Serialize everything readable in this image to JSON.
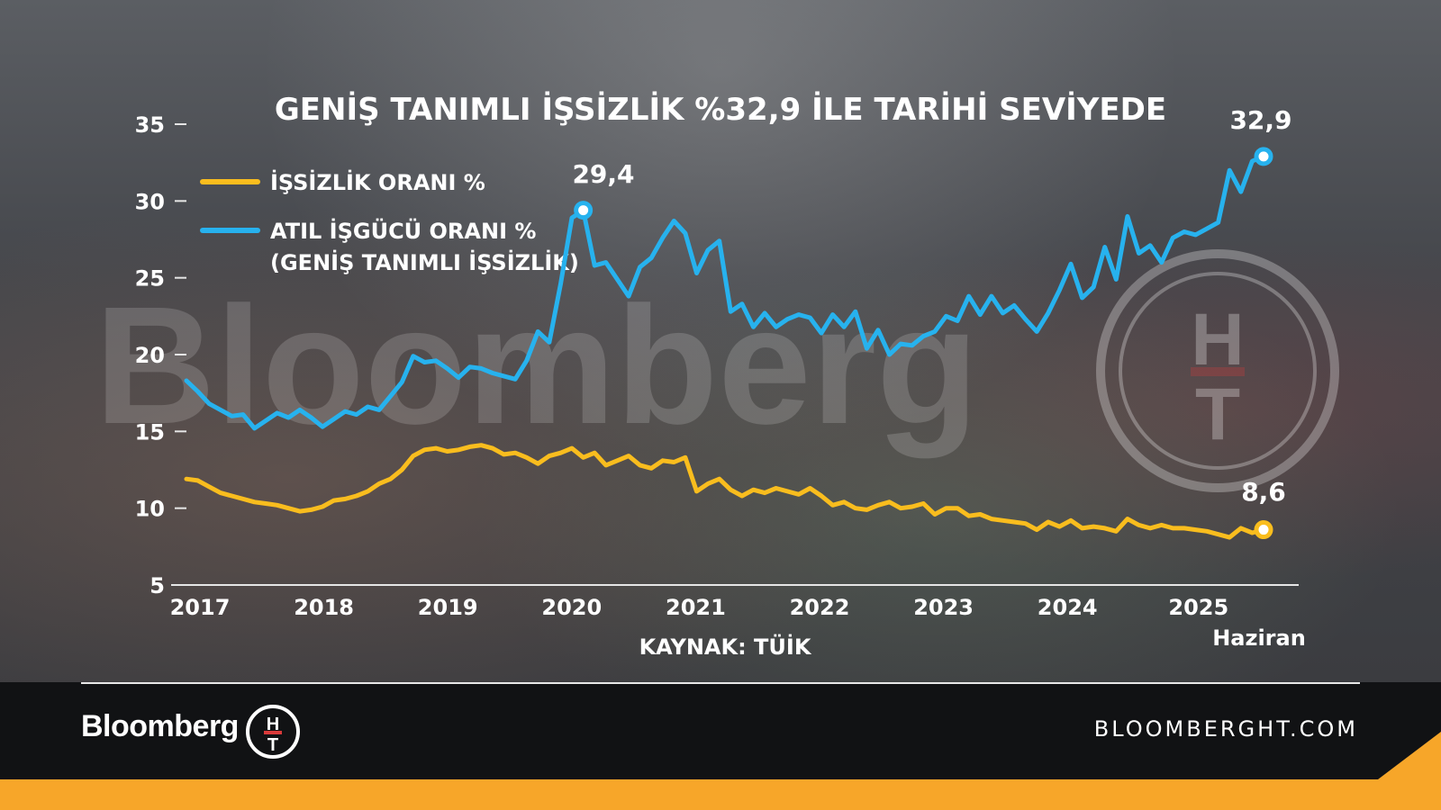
{
  "chart_data": {
    "type": "line",
    "title": "GENİŞ TANIMLI İŞSİZLİK %32,9 İLE TARİHİ SEVİYEDE",
    "source": "KAYNAK: TÜİK",
    "ylim": [
      5,
      35
    ],
    "y_ticks": [
      "5",
      "10",
      "15",
      "20",
      "25",
      "30",
      "35"
    ],
    "x_ticks": [
      "2017",
      "2018",
      "2019",
      "2020",
      "2021",
      "2022",
      "2023",
      "2024",
      "2025"
    ],
    "x_end_note": "Haziran",
    "grid": false,
    "legend_position": "top-left",
    "series": [
      {
        "name": "İŞSİZLİK ORANI %",
        "color": "#f9bd1e",
        "values": [
          11.9,
          11.8,
          11.4,
          11.0,
          10.8,
          10.6,
          10.4,
          10.3,
          10.2,
          10.0,
          9.8,
          9.9,
          10.1,
          10.5,
          10.6,
          10.8,
          11.1,
          11.6,
          11.9,
          12.5,
          13.4,
          13.8,
          13.9,
          13.7,
          13.8,
          14.0,
          14.1,
          13.9,
          13.5,
          13.6,
          13.3,
          12.9,
          13.4,
          13.6,
          13.9,
          13.3,
          13.6,
          12.8,
          13.1,
          13.4,
          12.8,
          12.6,
          13.1,
          13.0,
          13.3,
          11.1,
          11.6,
          11.9,
          11.2,
          10.8,
          11.2,
          11.0,
          11.3,
          11.1,
          10.9,
          11.3,
          10.8,
          10.2,
          10.4,
          10.0,
          9.9,
          10.2,
          10.4,
          10.0,
          10.1,
          10.3,
          9.6,
          10.0,
          10.0,
          9.5,
          9.6,
          9.3,
          9.2,
          9.1,
          9.0,
          8.6,
          9.1,
          8.8,
          9.2,
          8.7,
          8.8,
          8.7,
          8.5,
          9.3,
          8.9,
          8.7,
          8.9,
          8.7,
          8.7,
          8.6,
          8.5,
          8.3,
          8.1,
          8.7,
          8.4,
          8.6
        ]
      },
      {
        "name": "ATIL İŞGÜCÜ ORANI % (GENİŞ TANIMLI İŞSİZLİK)",
        "legend_lines": [
          "ATIL İŞGÜCÜ ORANI %",
          "(GENİŞ TANIMLI İŞSİZLİK)"
        ],
        "color": "#27b2ee",
        "values": [
          18.3,
          17.6,
          16.8,
          16.4,
          16.0,
          16.1,
          15.2,
          15.7,
          16.2,
          15.9,
          16.4,
          15.9,
          15.3,
          15.8,
          16.3,
          16.1,
          16.6,
          16.4,
          17.3,
          18.2,
          19.9,
          19.5,
          19.6,
          19.1,
          18.5,
          19.2,
          19.1,
          18.8,
          18.6,
          18.4,
          19.6,
          21.5,
          20.8,
          24.6,
          28.9,
          29.4,
          25.8,
          26.0,
          24.9,
          23.8,
          25.7,
          26.3,
          27.6,
          28.7,
          27.9,
          25.3,
          26.8,
          27.4,
          22.8,
          23.3,
          21.8,
          22.7,
          21.8,
          22.3,
          22.6,
          22.4,
          21.4,
          22.6,
          21.8,
          22.8,
          20.4,
          21.6,
          20.0,
          20.7,
          20.6,
          21.2,
          21.5,
          22.5,
          22.2,
          23.8,
          22.6,
          23.8,
          22.7,
          23.2,
          22.3,
          21.5,
          22.7,
          24.2,
          25.9,
          23.7,
          24.4,
          27.0,
          24.9,
          29.0,
          26.6,
          27.1,
          26.0,
          27.6,
          28.0,
          27.8,
          28.2,
          28.6,
          32.0,
          30.6,
          32.6,
          32.9
        ]
      }
    ],
    "annotations": {
      "atil_peak_2020": "29,4",
      "atil_last": "32,9",
      "issizlik_last": "8,6"
    }
  },
  "watermark": {
    "text": "Bloomberg",
    "logo_letters": [
      "H",
      "T"
    ]
  },
  "footer": {
    "brand": "Bloomberg",
    "logo_letters": [
      "H",
      "T"
    ],
    "site": "BLOOMBERGHT.COM"
  },
  "colors": {
    "accent_orange": "#f7a629",
    "footer_bg": "#111214",
    "axis": "#e6e6e6"
  }
}
